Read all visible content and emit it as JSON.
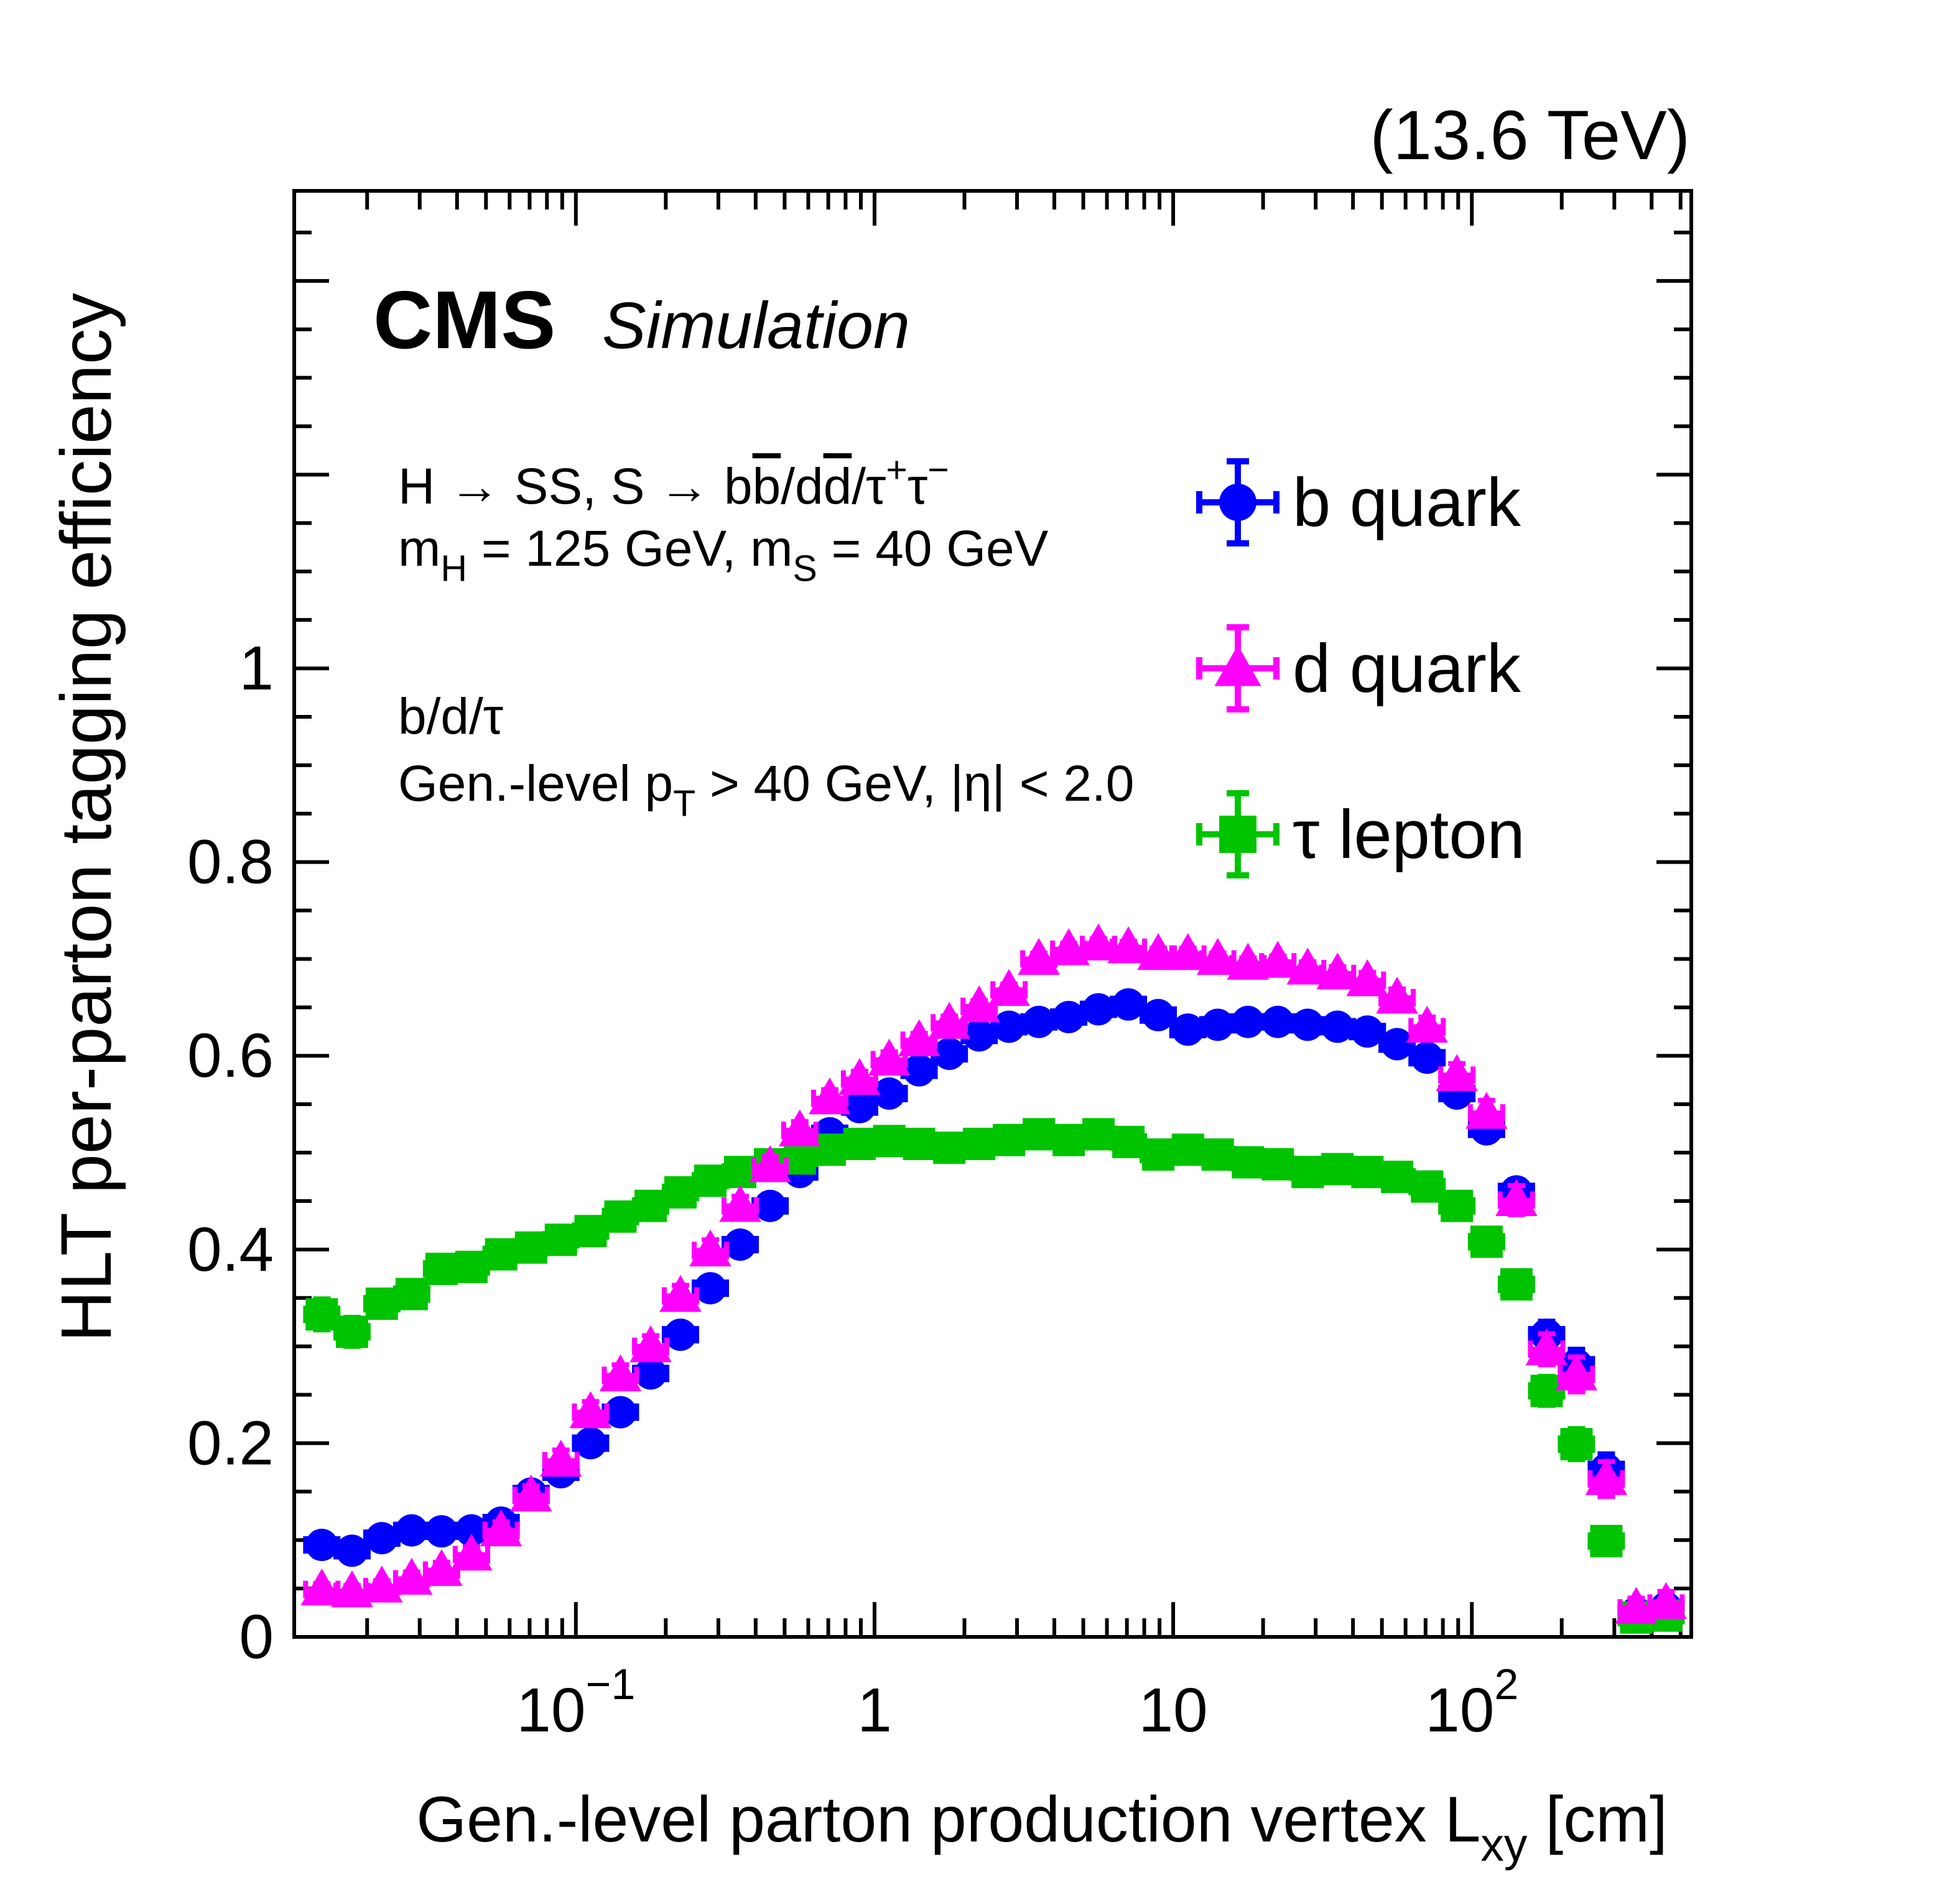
{
  "header": {
    "energy": "(13.6 TeV)"
  },
  "watermark": {
    "brand": "CMS",
    "label": "Simulation"
  },
  "annotations": {
    "process": [
      {
        "t": "H → SS, S → b"
      },
      {
        "t": "b",
        "s": "over"
      },
      {
        "t": "/d"
      },
      {
        "t": "d",
        "s": "over"
      },
      {
        "t": "/τ"
      },
      {
        "t": "+",
        "s": "sup"
      },
      {
        "t": "τ"
      },
      {
        "t": "−",
        "s": "sup"
      }
    ],
    "masses": [
      {
        "t": "m"
      },
      {
        "t": "H",
        "s": "sub"
      },
      {
        "t": " = 125 GeV, m"
      },
      {
        "t": "S",
        "s": "sub"
      },
      {
        "t": " = 40 GeV"
      }
    ],
    "partons": "b/d/τ",
    "selection": [
      {
        "t": "Gen.-level p"
      },
      {
        "t": "T",
        "s": "sub"
      },
      {
        "t": " > 40 GeV, |η| < 2.0"
      }
    ]
  },
  "legend": {
    "items": [
      {
        "label": "b quark",
        "marker": "circle",
        "color": "#0000ff"
      },
      {
        "label": "d quark",
        "marker": "triangle",
        "color": "#ff00ff"
      },
      {
        "label": "τ lepton",
        "marker": "square",
        "color": "#00c400"
      }
    ]
  },
  "chart_data": {
    "type": "scatter",
    "xscale": "log",
    "xlim": [
      0.0114,
      543
    ],
    "ylim": [
      0,
      1.493
    ],
    "grid": false,
    "legend_position": "upper-right",
    "ylabel": "HLT per-parton tagging efficiency",
    "xlabel_parts": [
      {
        "t": "Gen.-level parton production vertex L"
      },
      {
        "t": "xy",
        "s": "sub"
      },
      {
        "t": " [cm]"
      }
    ],
    "xticks": [
      {
        "v": 0.1,
        "base": "10",
        "exp": "−1"
      },
      {
        "v": 1,
        "base": "1",
        "exp": ""
      },
      {
        "v": 10,
        "base": "10",
        "exp": ""
      },
      {
        "v": 100,
        "base": "10",
        "exp": "2"
      }
    ],
    "yticks": [
      {
        "v": 0,
        "label": "0"
      },
      {
        "v": 0.2,
        "label": "0.2"
      },
      {
        "v": 0.4,
        "label": "0.4"
      },
      {
        "v": 0.6,
        "label": "0.6"
      },
      {
        "v": 0.8,
        "label": "0.8"
      },
      {
        "v": 1,
        "label": "1"
      }
    ],
    "x": [
      0.0141,
      0.0178,
      0.0224,
      0.0282,
      0.0355,
      0.0447,
      0.0562,
      0.0708,
      0.0891,
      0.112,
      0.141,
      0.178,
      0.224,
      0.282,
      0.355,
      0.447,
      0.562,
      0.708,
      0.891,
      1.12,
      1.41,
      1.78,
      2.24,
      2.82,
      3.55,
      4.47,
      5.62,
      7.08,
      8.91,
      11.2,
      14.1,
      17.8,
      22.4,
      28.2,
      35.5,
      44.7,
      56.2,
      70.8,
      89.1,
      112,
      141,
      178,
      224,
      282,
      355,
      447
    ],
    "series": [
      {
        "name": "b quark",
        "marker": "circle",
        "color": "#0000ff",
        "values": [
          0.095,
          0.089,
          0.102,
          0.11,
          0.109,
          0.11,
          0.118,
          0.148,
          0.17,
          0.2,
          0.232,
          0.272,
          0.312,
          0.36,
          0.405,
          0.445,
          0.48,
          0.52,
          0.547,
          0.561,
          0.585,
          0.602,
          0.621,
          0.63,
          0.635,
          0.64,
          0.648,
          0.653,
          0.642,
          0.627,
          0.632,
          0.635,
          0.635,
          0.632,
          0.63,
          0.625,
          0.612,
          0.598,
          0.561,
          0.524,
          0.46,
          0.312,
          0.281,
          0.173,
          0.025,
          0.03
        ],
        "yerr": [
          0.012,
          0.011,
          0.011,
          0.01,
          0.009,
          0.008,
          0.008,
          0.008,
          0.008,
          0.008,
          0.008,
          0.008,
          0.008,
          0.008,
          0.008,
          0.007,
          0.007,
          0.006,
          0.006,
          0.006,
          0.005,
          0.005,
          0.005,
          0.005,
          0.005,
          0.005,
          0.005,
          0.005,
          0.005,
          0.005,
          0.005,
          0.005,
          0.005,
          0.005,
          0.006,
          0.006,
          0.007,
          0.008,
          0.009,
          0.01,
          0.012,
          0.014,
          0.016,
          0.016,
          0.008,
          0.01
        ]
      },
      {
        "name": "d quark",
        "marker": "triangle",
        "color": "#ff00ff",
        "values": [
          0.049,
          0.047,
          0.052,
          0.06,
          0.069,
          0.085,
          0.11,
          0.146,
          0.182,
          0.232,
          0.27,
          0.3,
          0.352,
          0.399,
          0.445,
          0.486,
          0.523,
          0.556,
          0.576,
          0.596,
          0.616,
          0.634,
          0.651,
          0.668,
          0.7,
          0.71,
          0.715,
          0.712,
          0.705,
          0.705,
          0.7,
          0.695,
          0.697,
          0.69,
          0.685,
          0.678,
          0.66,
          0.63,
          0.58,
          0.541,
          0.451,
          0.297,
          0.271,
          0.163,
          0.03,
          0.035
        ],
        "yerr": [
          0.006,
          0.006,
          0.006,
          0.007,
          0.008,
          0.008,
          0.009,
          0.01,
          0.011,
          0.011,
          0.011,
          0.011,
          0.011,
          0.011,
          0.01,
          0.01,
          0.009,
          0.009,
          0.008,
          0.008,
          0.007,
          0.007,
          0.006,
          0.006,
          0.006,
          0.006,
          0.006,
          0.006,
          0.006,
          0.006,
          0.006,
          0.006,
          0.006,
          0.007,
          0.007,
          0.008,
          0.009,
          0.01,
          0.012,
          0.013,
          0.015,
          0.016,
          0.018,
          0.018,
          0.01,
          0.012
        ]
      },
      {
        "name": "τ lepton",
        "marker": "square",
        "color": "#00c400",
        "values": [
          0.333,
          0.315,
          0.344,
          0.354,
          0.38,
          0.382,
          0.395,
          0.402,
          0.41,
          0.419,
          0.434,
          0.445,
          0.459,
          0.471,
          0.48,
          0.488,
          0.494,
          0.503,
          0.509,
          0.512,
          0.509,
          0.505,
          0.509,
          0.513,
          0.519,
          0.513,
          0.519,
          0.511,
          0.498,
          0.503,
          0.498,
          0.49,
          0.488,
          0.48,
          0.483,
          0.48,
          0.475,
          0.465,
          0.445,
          0.408,
          0.364,
          0.254,
          0.199,
          0.099,
          0.02,
          0.022
        ],
        "yerr": [
          0.016,
          0.015,
          0.014,
          0.013,
          0.012,
          0.011,
          0.01,
          0.01,
          0.009,
          0.009,
          0.008,
          0.008,
          0.008,
          0.007,
          0.007,
          0.007,
          0.006,
          0.006,
          0.006,
          0.006,
          0.006,
          0.006,
          0.006,
          0.006,
          0.006,
          0.006,
          0.006,
          0.006,
          0.006,
          0.006,
          0.006,
          0.006,
          0.007,
          0.007,
          0.007,
          0.008,
          0.008,
          0.009,
          0.01,
          0.011,
          0.013,
          0.015,
          0.016,
          0.014,
          0.006,
          0.007
        ]
      }
    ]
  }
}
